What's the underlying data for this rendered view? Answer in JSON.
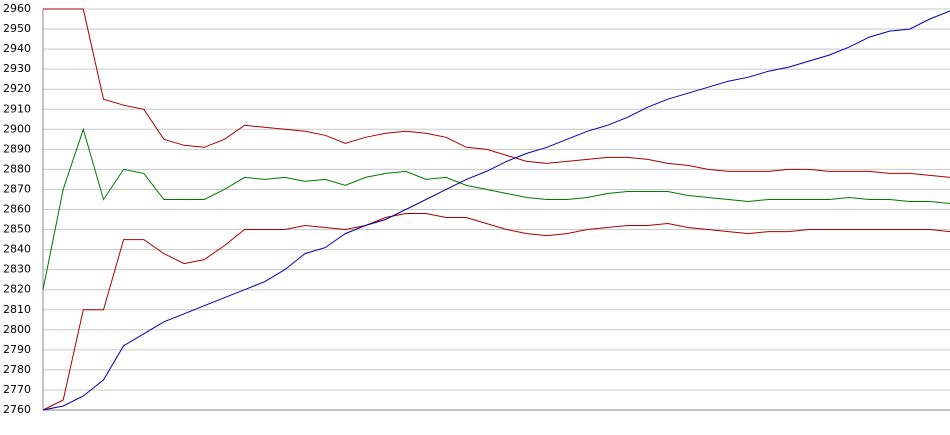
{
  "chart_data": {
    "type": "line",
    "ylim": [
      2760,
      2960
    ],
    "yticks": [
      2760,
      2770,
      2780,
      2790,
      2800,
      2810,
      2820,
      2830,
      2840,
      2850,
      2860,
      2870,
      2880,
      2890,
      2900,
      2910,
      2920,
      2930,
      2940,
      2950,
      2960
    ],
    "grid": true,
    "series": [
      {
        "color": "#aa0000",
        "values": [
          2960,
          2960,
          2960,
          2915,
          2912,
          2910,
          2895,
          2892,
          2891,
          2895,
          2902,
          2901,
          2900,
          2899,
          2897,
          2893,
          2896,
          2898,
          2899,
          2898,
          2896,
          2891,
          2890,
          2887,
          2884,
          2883,
          2884,
          2885,
          2886,
          2886,
          2885,
          2883,
          2882,
          2880,
          2879,
          2879,
          2879,
          2880,
          2880,
          2879,
          2879,
          2879,
          2878,
          2878,
          2877,
          2876
        ]
      },
      {
        "color": "#007700",
        "values": [
          2820,
          2870,
          2900,
          2865,
          2880,
          2878,
          2865,
          2865,
          2865,
          2870,
          2876,
          2875,
          2876,
          2874,
          2875,
          2872,
          2876,
          2878,
          2879,
          2875,
          2876,
          2872,
          2870,
          2868,
          2866,
          2865,
          2865,
          2866,
          2868,
          2869,
          2869,
          2869,
          2867,
          2866,
          2865,
          2864,
          2865,
          2865,
          2865,
          2865,
          2866,
          2865,
          2865,
          2864,
          2864,
          2863
        ]
      },
      {
        "color": "#aa0000",
        "values": [
          2760,
          2765,
          2810,
          2810,
          2845,
          2845,
          2838,
          2833,
          2835,
          2842,
          2850,
          2850,
          2850,
          2852,
          2851,
          2850,
          2852,
          2856,
          2858,
          2858,
          2856,
          2856,
          2853,
          2850,
          2848,
          2847,
          2848,
          2850,
          2851,
          2852,
          2852,
          2853,
          2851,
          2850,
          2849,
          2848,
          2849,
          2849,
          2850,
          2850,
          2850,
          2850,
          2850,
          2850,
          2850,
          2849
        ]
      },
      {
        "color": "#0000aa",
        "values": [
          2760,
          2762,
          2767,
          2775,
          2792,
          2798,
          2804,
          2808,
          2812,
          2816,
          2820,
          2824,
          2830,
          2838,
          2841,
          2848,
          2852,
          2855,
          2860,
          2865,
          2870,
          2875,
          2879,
          2884,
          2888,
          2891,
          2895,
          2899,
          2902,
          2906,
          2911,
          2915,
          2918,
          2921,
          2924,
          2926,
          2929,
          2931,
          2934,
          2937,
          2941,
          2946,
          2949,
          2950,
          2955,
          2959
        ]
      }
    ]
  }
}
